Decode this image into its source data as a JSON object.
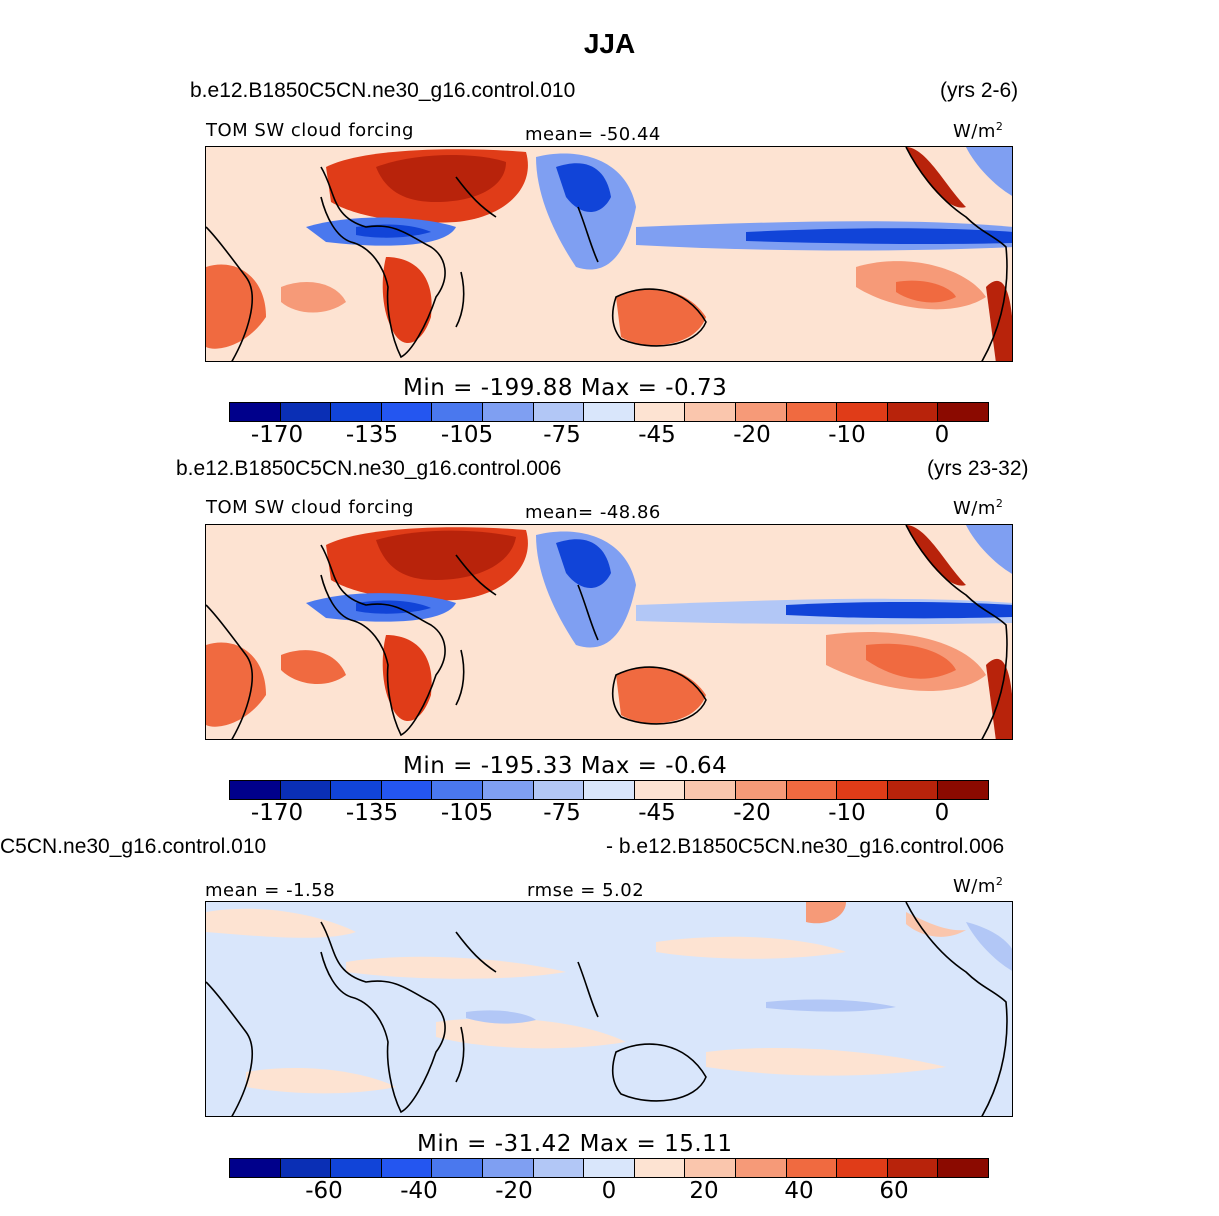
{
  "figure": {
    "title": "JJA"
  },
  "panels": [
    {
      "case_left": "b.e12.B1850C5CN.ne30_g16.control.010",
      "case_right": "(yrs 2-6)",
      "var_label": "TOM SW cloud forcing",
      "stat_label": "mean= -50.44",
      "units": "W/m",
      "units_sup": "2",
      "minmax": "Min = -199.88 Max = -0.73",
      "colorbar_ticks": [
        "-170",
        "-135",
        "-105",
        "-75",
        "-45",
        "-20",
        "-10",
        "0"
      ]
    },
    {
      "case_left": "b.e12.B1850C5CN.ne30_g16.control.006",
      "case_right": "(yrs 23-32)",
      "var_label": "TOM SW cloud forcing",
      "stat_label": "mean= -48.86",
      "units": "W/m",
      "units_sup": "2",
      "minmax": "Min = -195.33 Max = -0.64",
      "colorbar_ticks": [
        "-170",
        "-135",
        "-105",
        "-75",
        "-45",
        "-20",
        "-10",
        "0"
      ]
    },
    {
      "case_left": "C5CN.ne30_g16.control.010",
      "case_right": "- b.e12.B1850C5CN.ne30_g16.control.006",
      "stat_label": "mean = -1.58",
      "rmse_label": "rmse = 5.02",
      "units": "W/m",
      "units_sup": "2",
      "minmax": "Min = -31.42 Max = 15.11",
      "colorbar_ticks": [
        "-60",
        "-40",
        "-20",
        "0",
        "20",
        "40",
        "60"
      ]
    }
  ],
  "colors": {
    "colorbar": [
      "#00008b",
      "#0a2fb5",
      "#1144d8",
      "#2456f0",
      "#4a78ee",
      "#7f9ff2",
      "#b2c7f6",
      "#d9e6fb",
      "#fde3d2",
      "#fac6ad",
      "#f69a78",
      "#f06a40",
      "#e03c18",
      "#b8230b",
      "#8b0a00"
    ],
    "coast": "#000000"
  }
}
